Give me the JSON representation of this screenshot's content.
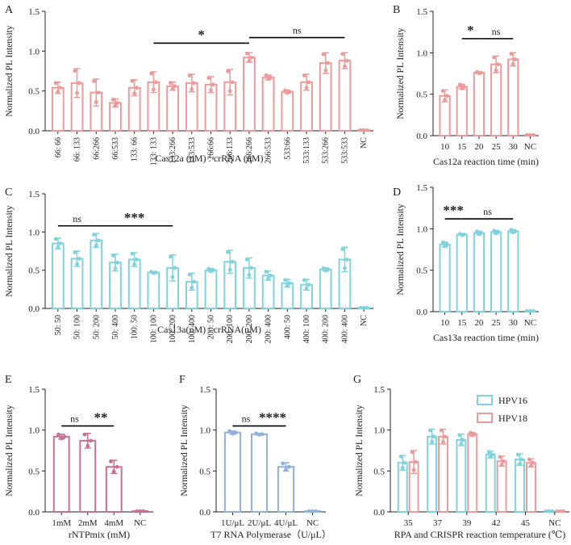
{
  "colors": {
    "pink": "#ec9a9a",
    "cyan": "#7fd3dd",
    "mauve": "#c86f94",
    "blue": "#8fb1dc",
    "axis": "#222222"
  },
  "chart_data": [
    {
      "id": "A",
      "type": "bar",
      "color_key": "pink",
      "ylabel": "Normalized PL Intensity",
      "xlabel": "Cas12a (nM) : crRNA (nM)",
      "ylim": [
        0,
        1.5
      ],
      "yticks": [
        "0.0",
        "0.5",
        "1.0",
        "1.5"
      ],
      "categories": [
        "66: 66",
        "66: 133",
        "66:266",
        "66:533",
        "133: 66",
        "133: 133",
        "133:266",
        "133:533",
        "266:66",
        "266:133",
        "266:266",
        "266:533",
        "533:66",
        "533:133",
        "533:266",
        "533:533",
        "NC"
      ],
      "values": [
        0.54,
        0.6,
        0.48,
        0.35,
        0.54,
        0.61,
        0.56,
        0.6,
        0.58,
        0.61,
        0.92,
        0.67,
        0.49,
        0.61,
        0.85,
        0.88,
        0.01
      ],
      "errors": [
        0.07,
        0.18,
        0.17,
        0.05,
        0.1,
        0.13,
        0.05,
        0.11,
        0.1,
        0.16,
        0.06,
        0.03,
        0.02,
        0.1,
        0.13,
        0.1,
        0.0
      ],
      "annotations": [
        {
          "label": "*",
          "from": 5,
          "to": 10,
          "y": 1.1
        },
        {
          "label": "ns",
          "from": 10,
          "to": 15,
          "y": 1.17
        }
      ]
    },
    {
      "id": "B",
      "type": "bar",
      "color_key": "pink",
      "ylabel": "Normalized PL Intensity",
      "xlabel": "Cas12a reaction time (min)",
      "ylim": [
        0,
        1.5
      ],
      "yticks": [
        "0.0",
        "0.5",
        "1.0",
        "1.5"
      ],
      "categories": [
        "10",
        "15",
        "20",
        "25",
        "30",
        "NC"
      ],
      "values": [
        0.48,
        0.59,
        0.76,
        0.86,
        0.92,
        0.01
      ],
      "errors": [
        0.07,
        0.03,
        0.01,
        0.1,
        0.08,
        0.0
      ],
      "annotations": [
        {
          "label": "*",
          "from": 1,
          "to": 2,
          "y": 1.17
        },
        {
          "label": "ns",
          "from": 2,
          "to": 4,
          "y": 1.17
        }
      ]
    },
    {
      "id": "C",
      "type": "bar",
      "color_key": "cyan",
      "ylabel": "Normalized PL Intensity",
      "xlabel": "Cas13a(nM) : crRNA(nM)",
      "ylim": [
        0,
        1.5
      ],
      "yticks": [
        "0.0",
        "0.5",
        "1.0",
        "1.5"
      ],
      "categories": [
        "50: 50",
        "50: 100",
        "50: 200",
        "50: 400",
        "100: 50",
        "100: 100",
        "100: 200",
        "100: 400",
        "200: 50",
        "200: 100",
        "200: 200",
        "200: 400",
        "400: 50",
        "400: 100",
        "400: 200",
        "400: 400",
        "NC"
      ],
      "values": [
        0.85,
        0.65,
        0.89,
        0.6,
        0.64,
        0.47,
        0.53,
        0.35,
        0.5,
        0.61,
        0.53,
        0.43,
        0.33,
        0.31,
        0.51,
        0.64,
        0.01
      ],
      "errors": [
        0.07,
        0.1,
        0.09,
        0.11,
        0.09,
        0.01,
        0.17,
        0.11,
        0.02,
        0.15,
        0.13,
        0.06,
        0.05,
        0.07,
        0.02,
        0.16,
        0.0
      ],
      "annotations": [
        {
          "label": "ns",
          "from": 0,
          "to": 2,
          "y": 1.08
        },
        {
          "label": "***",
          "from": 2,
          "to": 6,
          "y": 1.08
        }
      ]
    },
    {
      "id": "D",
      "type": "bar",
      "color_key": "cyan",
      "ylabel": "Normalized PL Intensity",
      "xlabel": "Cas13a reaction time (min)",
      "ylim": [
        0,
        1.5
      ],
      "yticks": [
        "0.0",
        "0.5",
        "1.0",
        "1.5"
      ],
      "categories": [
        "10",
        "15",
        "20",
        "25",
        "30",
        "NC"
      ],
      "values": [
        0.81,
        0.93,
        0.95,
        0.96,
        0.97,
        0.01
      ],
      "errors": [
        0.03,
        0.01,
        0.02,
        0.02,
        0.02,
        0.0
      ],
      "annotations": [
        {
          "label": "***",
          "from": 0,
          "to": 1,
          "y": 1.12
        },
        {
          "label": "ns",
          "from": 1,
          "to": 4,
          "y": 1.12
        }
      ]
    },
    {
      "id": "E",
      "type": "bar",
      "color_key": "mauve",
      "ylabel": "Normalized PL Intensity",
      "xlabel": "rNTPmix (mM)",
      "ylim": [
        0,
        1.5
      ],
      "yticks": [
        "0.0",
        "0.5",
        "1.0",
        "1.5"
      ],
      "categories": [
        "1mM",
        "2mM",
        "4mM",
        "NC"
      ],
      "values": [
        0.92,
        0.87,
        0.55,
        0.01
      ],
      "errors": [
        0.03,
        0.09,
        0.08,
        0.0
      ],
      "annotations": [
        {
          "label": "ns",
          "from": 0,
          "to": 1,
          "y": 1.05
        },
        {
          "label": "**",
          "from": 1,
          "to": 2,
          "y": 1.05
        }
      ]
    },
    {
      "id": "F",
      "type": "bar",
      "color_key": "blue",
      "ylabel": "Normalized PL Intensity",
      "xlabel": "T7  RNA Polymerase（U/μL）",
      "ylim": [
        0,
        1.5
      ],
      "yticks": [
        "0.0",
        "0.5",
        "1.0",
        "1.5"
      ],
      "categories": [
        "1U/μL",
        "2U/μL",
        "4U/μL",
        "NC"
      ],
      "values": [
        0.97,
        0.95,
        0.55,
        0.01
      ],
      "errors": [
        0.02,
        0.01,
        0.05,
        0.0
      ],
      "annotations": [
        {
          "label": "ns",
          "from": 0,
          "to": 1,
          "y": 1.05
        },
        {
          "label": "****",
          "from": 1,
          "to": 2,
          "y": 1.05
        }
      ]
    },
    {
      "id": "G",
      "type": "bar",
      "color_key": "cyan",
      "ylabel": "Normalized PL Intensity",
      "xlabel": "RPA and CRISPR reaction temperature (℃)",
      "ylim": [
        0,
        1.5
      ],
      "yticks": [
        "0.0",
        "0.5",
        "1.0",
        "1.5"
      ],
      "categories": [
        "35",
        "37",
        "39",
        "42",
        "45",
        "NC"
      ],
      "series": [
        {
          "name": "HPV16",
          "color_key": "cyan",
          "values": [
            0.6,
            0.92,
            0.88,
            0.7,
            0.64,
            0.01
          ],
          "errors": [
            0.09,
            0.09,
            0.07,
            0.04,
            0.07,
            0.0
          ]
        },
        {
          "name": "HPV18",
          "color_key": "pink",
          "values": [
            0.61,
            0.92,
            0.95,
            0.62,
            0.6,
            0.01
          ],
          "errors": [
            0.14,
            0.09,
            0.02,
            0.06,
            0.05,
            0.0
          ]
        }
      ],
      "legend": "top-right",
      "annotations": []
    }
  ]
}
